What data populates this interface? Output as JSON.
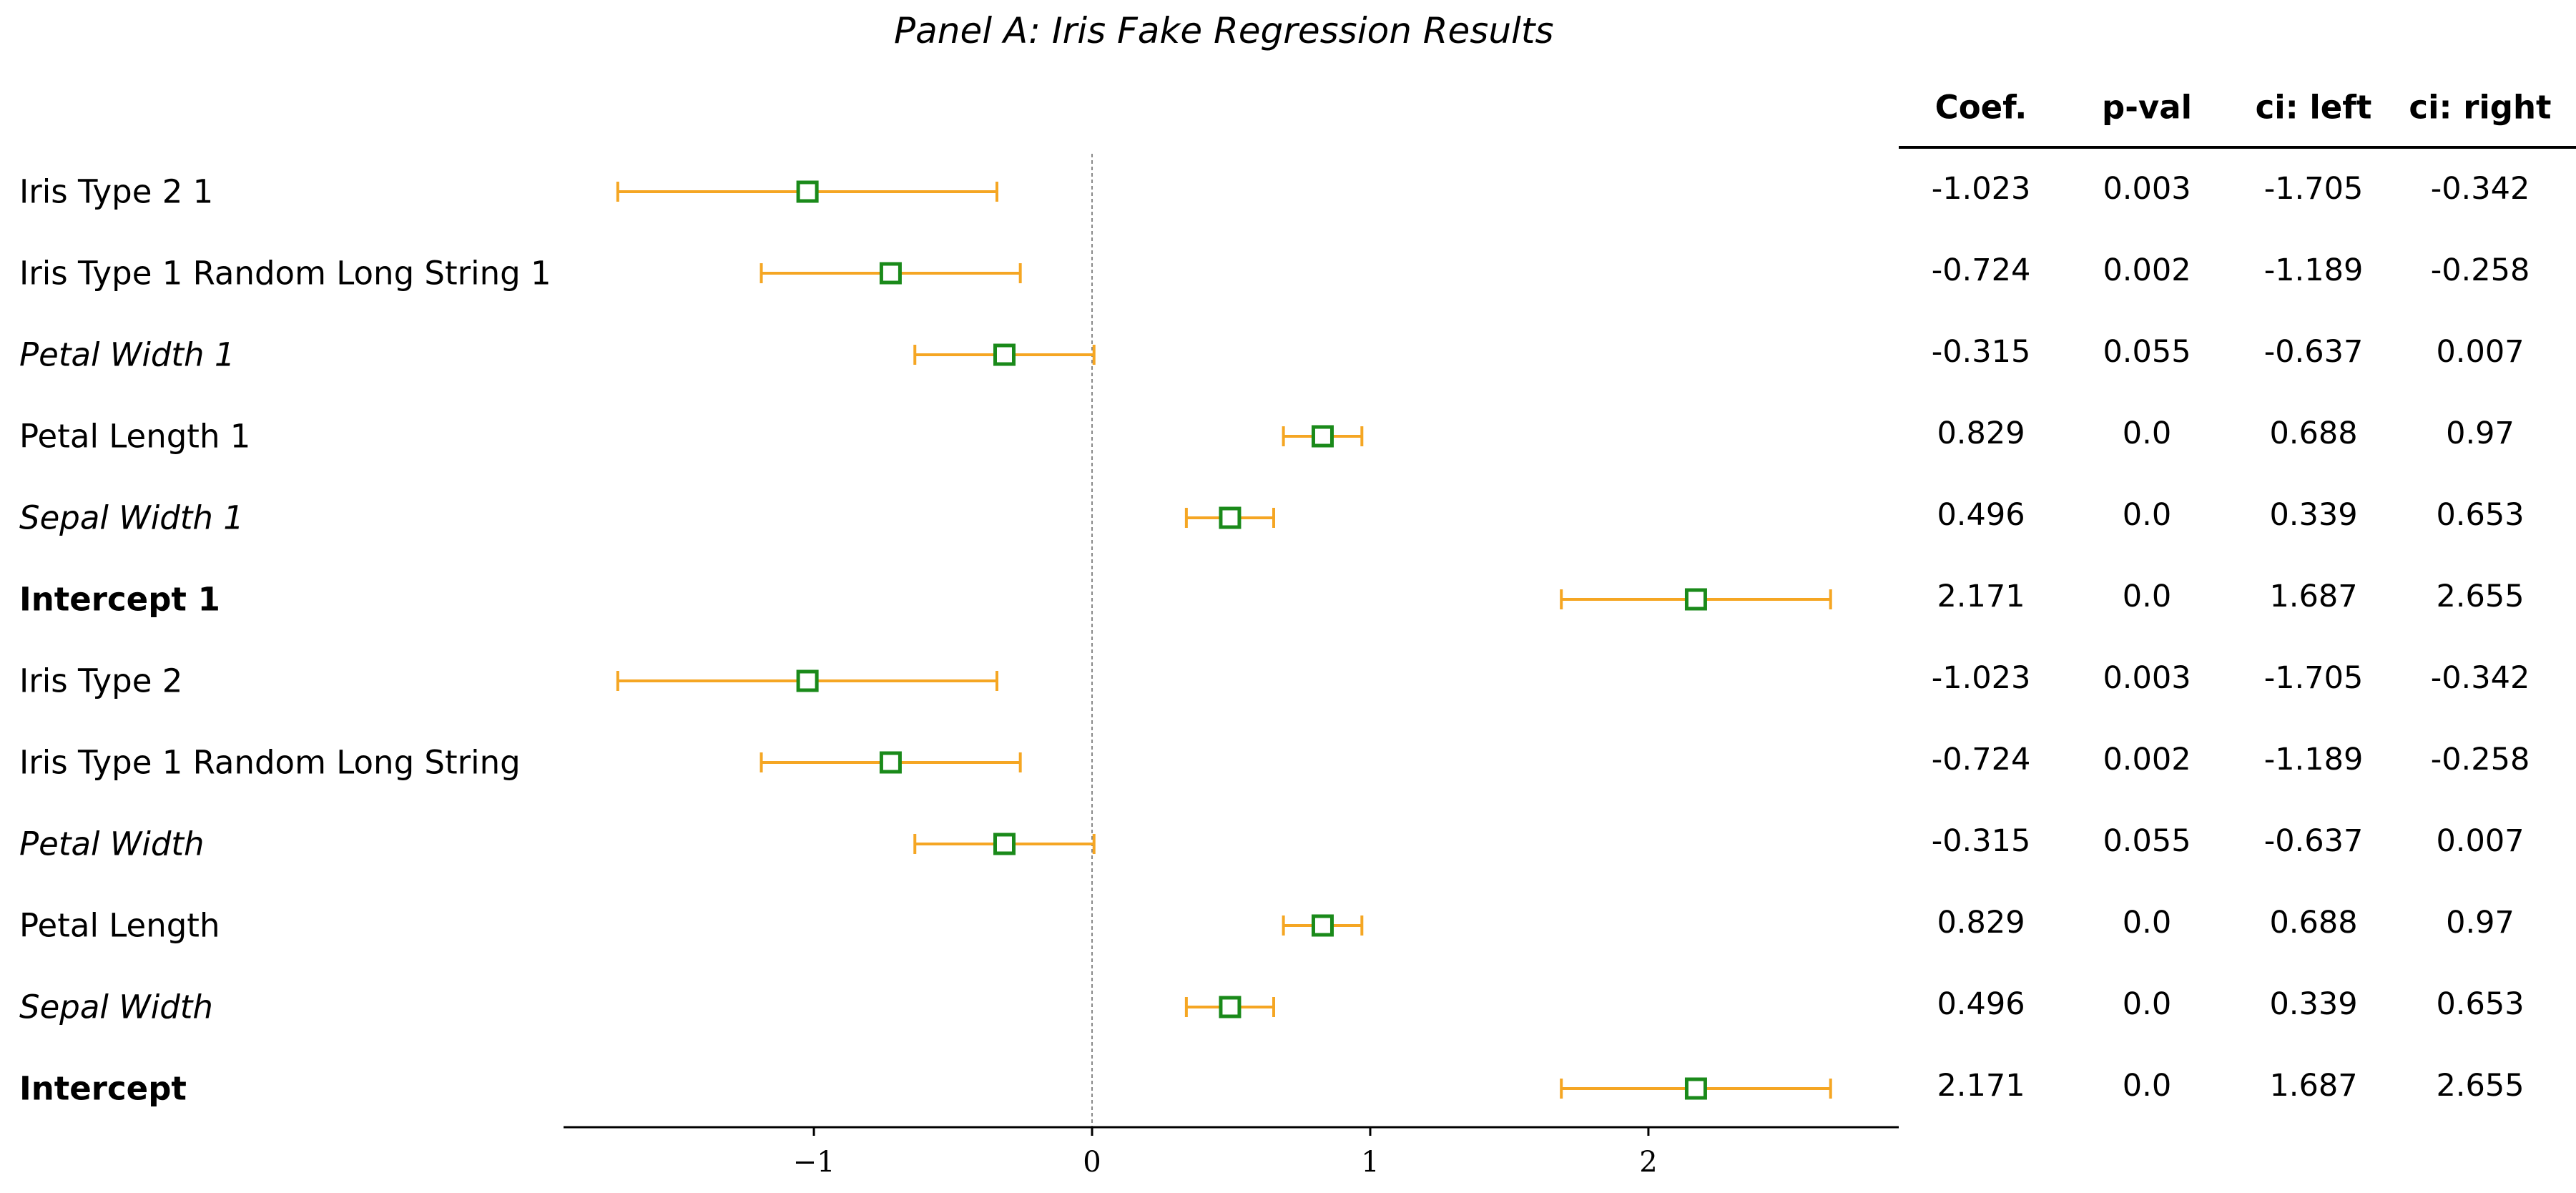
{
  "chart_data": {
    "type": "forest",
    "title": "Panel A: Iris Fake Regression Results",
    "xlim": [
      -1.9,
      2.9
    ],
    "xticks": [
      -1,
      0,
      1,
      2
    ],
    "xtick_labels": [
      "−1",
      "0",
      "1",
      "2"
    ],
    "reference_line_x": 0,
    "colors": {
      "marker": "#1a8a1a",
      "errorbar": "#f5a623",
      "refline": "#888888"
    },
    "table_headers": [
      "Coef.",
      "p-val",
      "ci: left",
      "ci: right"
    ],
    "rows": [
      {
        "label": "Iris Type 2 1",
        "style": "normal",
        "coef": "-1.023",
        "pval": "0.003",
        "ci_left": "-1.705",
        "ci_right": "-0.342"
      },
      {
        "label": "Iris Type 1 Random Long String 1",
        "style": "normal",
        "coef": "-0.724",
        "pval": "0.002",
        "ci_left": "-1.189",
        "ci_right": "-0.258"
      },
      {
        "label": "Petal Width 1",
        "style": "italic",
        "coef": "-0.315",
        "pval": "0.055",
        "ci_left": "-0.637",
        "ci_right": "0.007"
      },
      {
        "label": "Petal Length 1",
        "style": "normal",
        "coef": "0.829",
        "pval": "0.0",
        "ci_left": "0.688",
        "ci_right": "0.97"
      },
      {
        "label": "Sepal Width 1",
        "style": "italic",
        "coef": "0.496",
        "pval": "0.0",
        "ci_left": "0.339",
        "ci_right": "0.653"
      },
      {
        "label": "Intercept 1",
        "style": "bold",
        "coef": "2.171",
        "pval": "0.0",
        "ci_left": "1.687",
        "ci_right": "2.655"
      },
      {
        "label": "Iris Type 2",
        "style": "normal",
        "coef": "-1.023",
        "pval": "0.003",
        "ci_left": "-1.705",
        "ci_right": "-0.342"
      },
      {
        "label": "Iris Type 1 Random Long String",
        "style": "normal",
        "coef": "-0.724",
        "pval": "0.002",
        "ci_left": "-1.189",
        "ci_right": "-0.258"
      },
      {
        "label": "Petal Width",
        "style": "italic",
        "coef": "-0.315",
        "pval": "0.055",
        "ci_left": "-0.637",
        "ci_right": "0.007"
      },
      {
        "label": "Petal Length",
        "style": "normal",
        "coef": "0.829",
        "pval": "0.0",
        "ci_left": "0.688",
        "ci_right": "0.97"
      },
      {
        "label": "Sepal Width",
        "style": "italic",
        "coef": "0.496",
        "pval": "0.0",
        "ci_left": "0.339",
        "ci_right": "0.653"
      },
      {
        "label": "Intercept",
        "style": "bold",
        "coef": "2.171",
        "pval": "0.0",
        "ci_left": "1.687",
        "ci_right": "2.655"
      }
    ]
  }
}
